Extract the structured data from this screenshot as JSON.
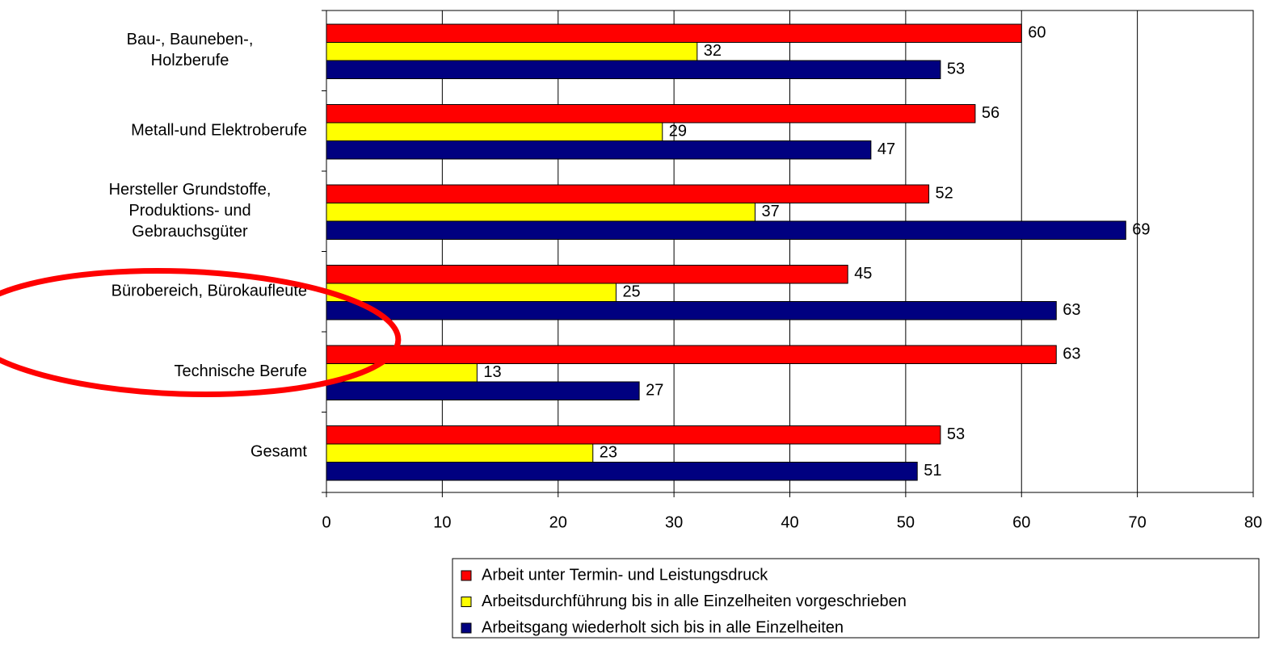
{
  "chart_data": {
    "type": "barh",
    "categories": [
      "Bau-, Bauneben-,\nHolzberufe",
      "Metall-und Elektroberufe",
      "Hersteller Grundstoffe,\nProduktions- und\nGebrauchsgüter",
      "Bürobereich, Bürokaufleute",
      "Technische Berufe",
      "Gesamt"
    ],
    "series": [
      {
        "name": "Arbeit unter Termin- und Leistungsdruck",
        "color": "#ff0000",
        "values": [
          60,
          56,
          52,
          45,
          63,
          53
        ]
      },
      {
        "name": "Arbeitsdurchführung bis in alle Einzelheiten vorgeschrieben",
        "color": "#ffff00",
        "values": [
          32,
          29,
          37,
          25,
          13,
          23
        ]
      },
      {
        "name": "Arbeitsgang wiederholt sich bis in alle Einzelheiten",
        "color": "#000080",
        "values": [
          53,
          47,
          69,
          63,
          27,
          51
        ]
      }
    ],
    "xlim": [
      0,
      80
    ],
    "xticks": [
      0,
      10,
      20,
      30,
      40,
      50,
      60,
      70,
      80
    ],
    "grid": true,
    "legend": "bottom"
  }
}
